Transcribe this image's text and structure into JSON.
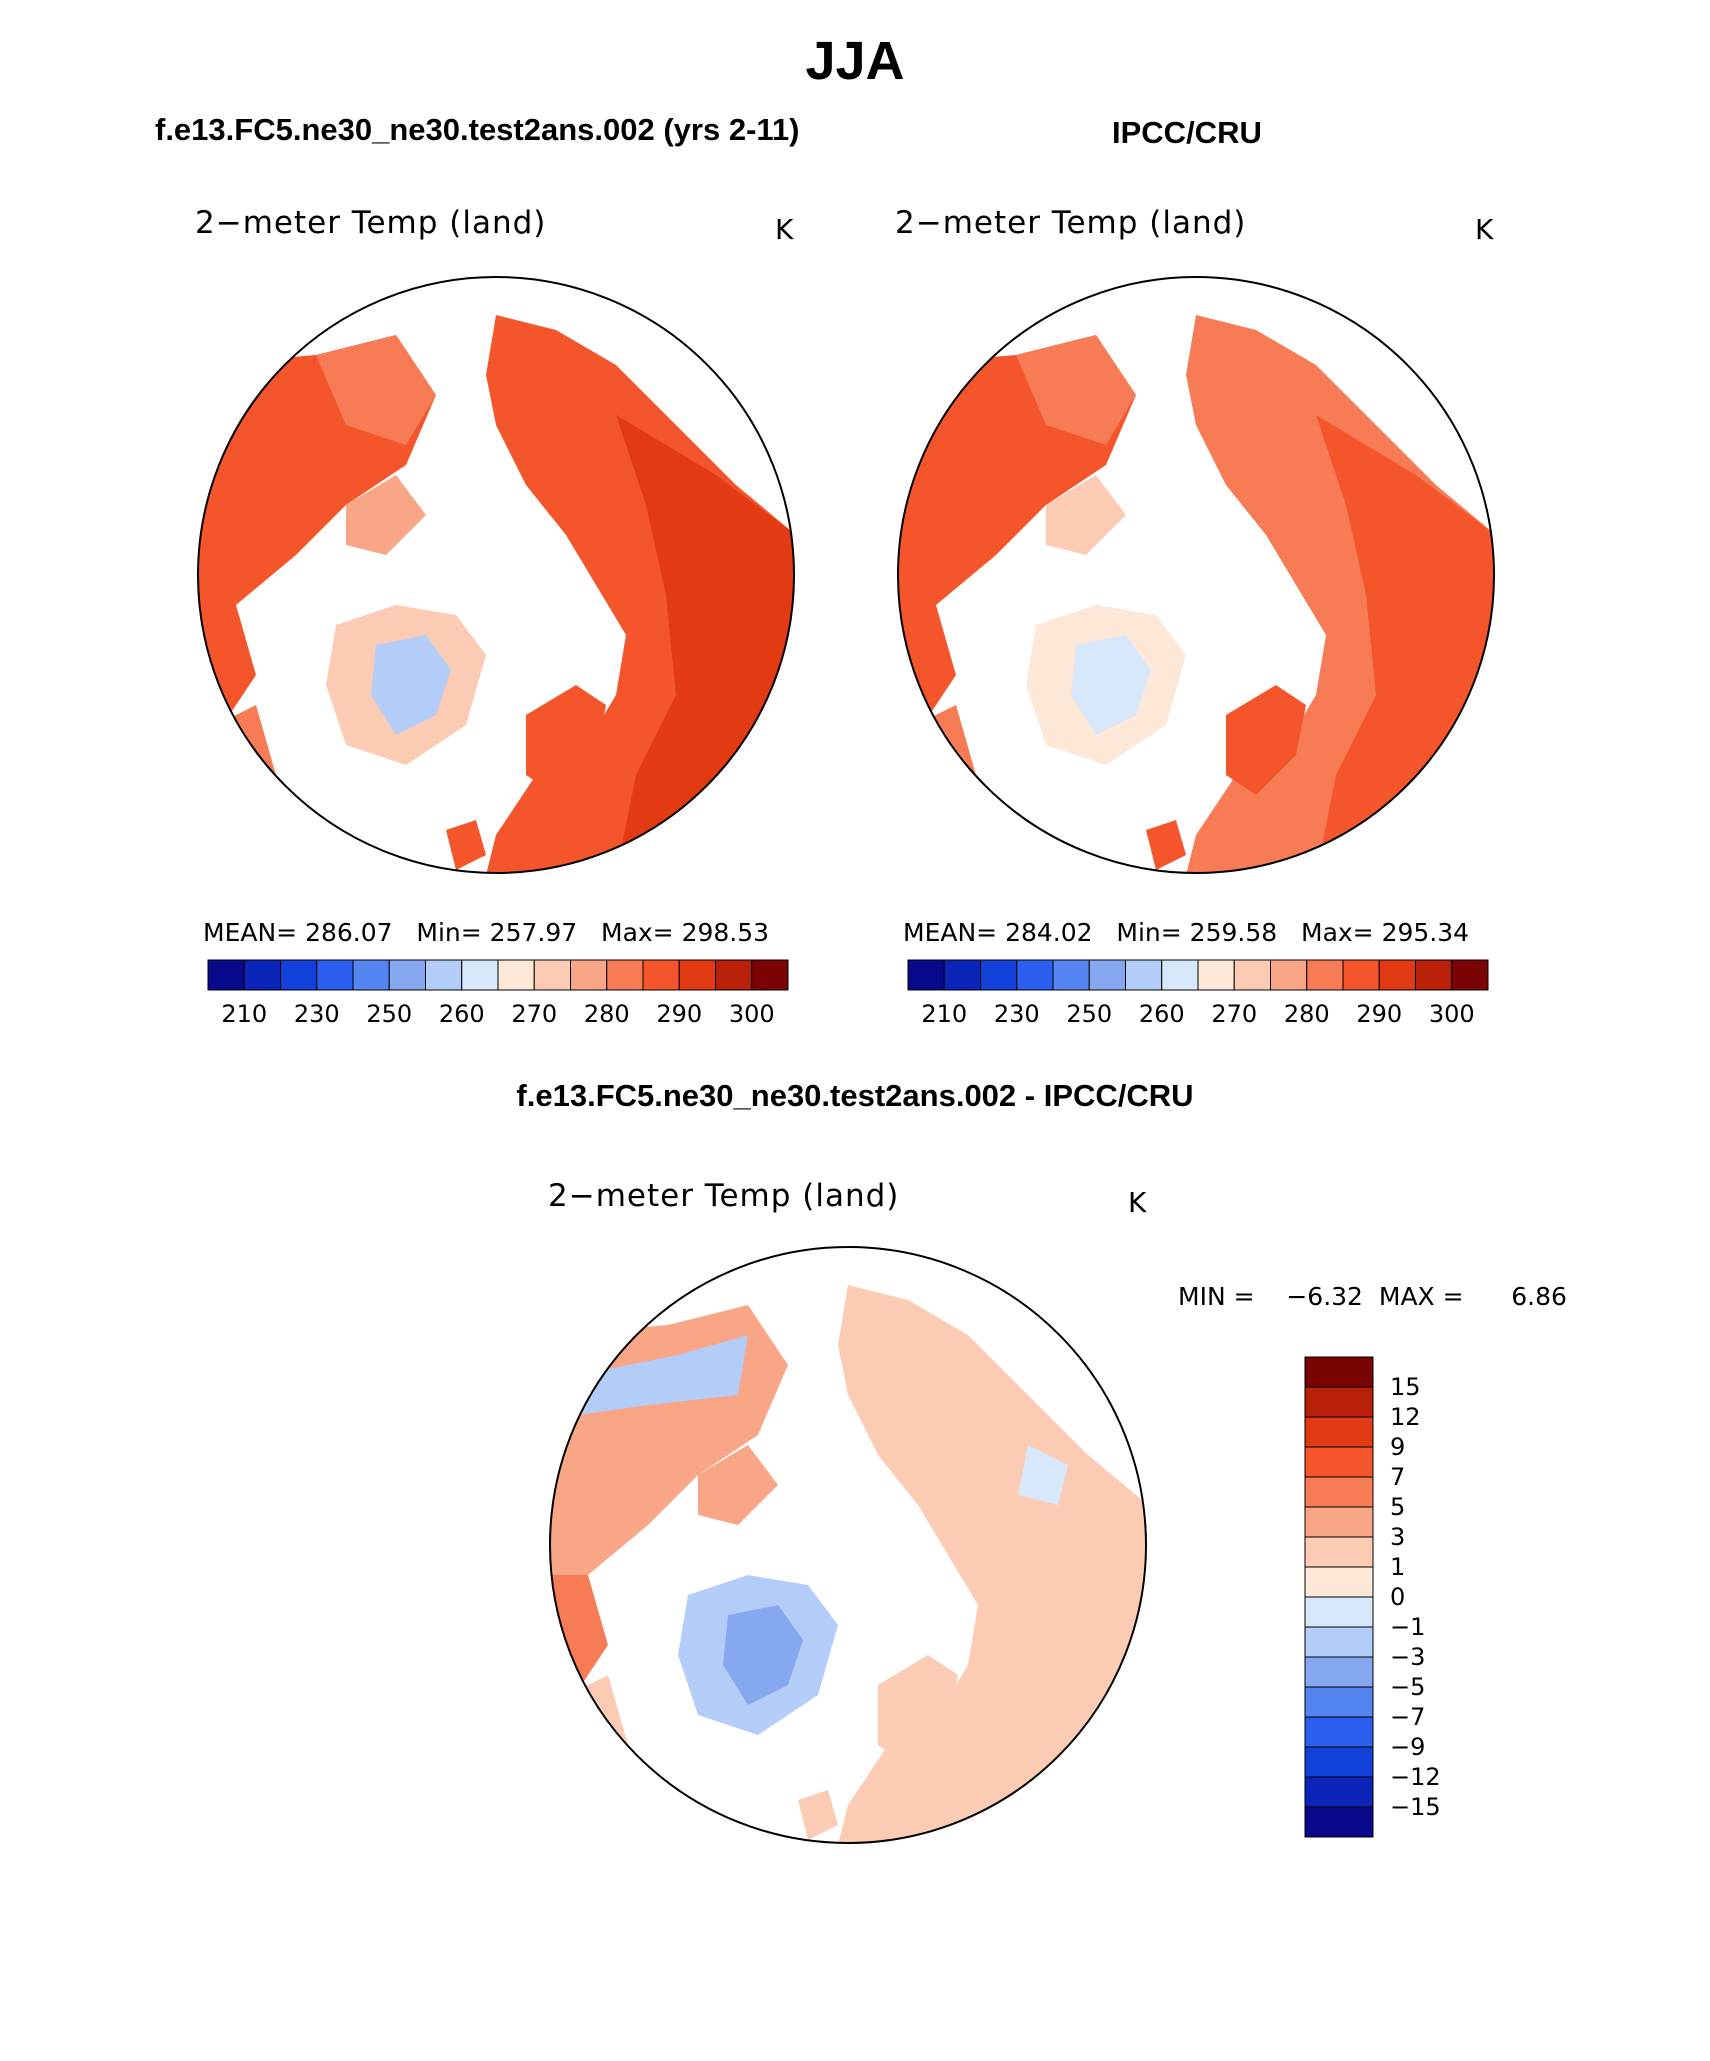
{
  "title": "JJA",
  "panels": [
    {
      "header": "f.e13.FC5.ne30_ne30.test2ans.002 (yrs 2-11)",
      "plot_title": "2−meter Temp (land)",
      "units": "K",
      "stats": {
        "mean_label": "MEAN=",
        "mean": "286.07",
        "min_label": "Min=",
        "min": "257.97",
        "max_label": "Max=",
        "max": "298.53"
      }
    },
    {
      "header": "IPCC/CRU",
      "plot_title": "2−meter Temp (land)",
      "units": "K",
      "stats": {
        "mean_label": "MEAN=",
        "mean": "284.02",
        "min_label": "Min=",
        "min": "259.58",
        "max_label": "Max=",
        "max": "295.34"
      }
    },
    {
      "header": "f.e13.FC5.ne30_ne30.test2ans.002 - IPCC/CRU",
      "plot_title": "2−meter Temp (land)",
      "units": "K",
      "minmax": {
        "min_label": "MIN =",
        "min": "−6.32",
        "max_label": "MAX =",
        "max": "6.86"
      }
    }
  ],
  "colorbar_abs": {
    "labels": [
      "210",
      "230",
      "250",
      "260",
      "270",
      "280",
      "290",
      "300"
    ],
    "colors": [
      "#08088a",
      "#0a25b8",
      "#1141d8",
      "#2c5ff0",
      "#5585f0",
      "#86a8f0",
      "#b4cdf8",
      "#d8e8fb",
      "#fde7d6",
      "#fbcbb3",
      "#f9a686",
      "#f77c55",
      "#f4552b",
      "#e23a12",
      "#b8200a",
      "#7a0404"
    ]
  },
  "colorbar_diff": {
    "labels": [
      "15",
      "12",
      "9",
      "7",
      "5",
      "3",
      "1",
      "0",
      "−1",
      "−3",
      "−5",
      "−7",
      "−9",
      "−12",
      "−15"
    ],
    "colors": [
      "#7a0404",
      "#b8200a",
      "#e23a12",
      "#f4552b",
      "#f77c55",
      "#f9a686",
      "#fbcbb3",
      "#fde7d6",
      "#d8e8fb",
      "#b4cdf8",
      "#86a8f0",
      "#5585f0",
      "#2c5ff0",
      "#1141d8",
      "#0a25b8",
      "#08088a"
    ]
  }
}
